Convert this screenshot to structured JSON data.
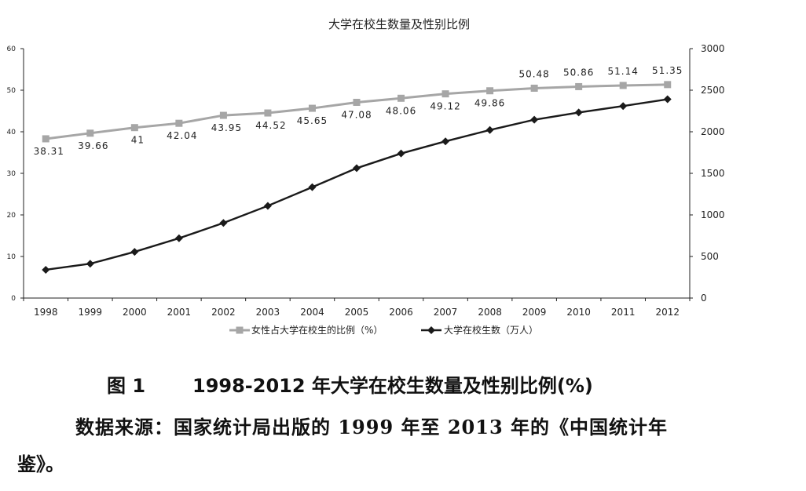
{
  "chart_data": {
    "type": "line",
    "title": "大学在校生数量及性别比例",
    "categories": [
      "1998",
      "1999",
      "2000",
      "2001",
      "2002",
      "2003",
      "2004",
      "2005",
      "2006",
      "2007",
      "2008",
      "2009",
      "2010",
      "2011",
      "2012"
    ],
    "y_left": {
      "range": [
        0,
        60
      ],
      "ticks": [
        "0",
        "10",
        "20",
        "30",
        "40",
        "50",
        "60"
      ]
    },
    "y_right": {
      "range": [
        0,
        3000
      ],
      "ticks": [
        "0",
        "500",
        "1000",
        "1500",
        "2000",
        "2500",
        "3000"
      ]
    },
    "series": [
      {
        "name": "女性占大学在校生的比例（%）",
        "axis": "left",
        "color": "#a6a6a6",
        "marker": "square",
        "values": [
          38.31,
          39.66,
          41,
          42.04,
          43.95,
          44.52,
          45.65,
          47.08,
          48.06,
          49.12,
          49.86,
          50.48,
          50.86,
          51.14,
          51.35
        ],
        "labels": [
          "38.31",
          "39.66",
          "41",
          "42.04",
          "43.95",
          "44.52",
          "45.65",
          "47.08",
          "48.06",
          "49.12",
          "49.86",
          "50.48",
          "50.86",
          "51.14",
          "51.35"
        ]
      },
      {
        "name": "大学在校生数（万人）",
        "axis": "right",
        "color": "#1a1a1a",
        "marker": "diamond",
        "values": [
          340,
          413,
          556,
          719,
          903,
          1109,
          1334,
          1562,
          1739,
          1885,
          2021,
          2145,
          2232,
          2309,
          2391
        ]
      }
    ],
    "grid": false,
    "legend_position": "bottom"
  },
  "caption": {
    "figure_number": "图 1",
    "text": "1998-2012 年大学在校生数量及性别比例(%)"
  },
  "source": {
    "line1": "数据来源：国家统计局出版的 1999 年至 2013 年的《中国统计年",
    "line2": "鉴》。"
  }
}
